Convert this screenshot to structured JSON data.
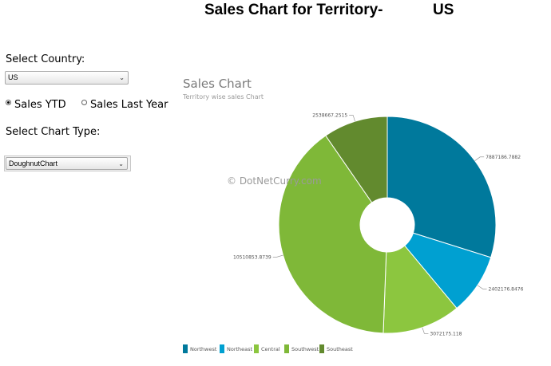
{
  "header": {
    "title_prefix": "Sales Chart for Territory-",
    "title_country": "US"
  },
  "form": {
    "country_label": "Select Country:",
    "country_value": "US",
    "radio_ytd": "Sales YTD",
    "radio_last_year": "Sales Last Year",
    "selected_radio": "ytd",
    "chart_type_label": "Select Chart Type:",
    "chart_type_value": "DoughnutChart"
  },
  "watermark": "© DotNetCurry.com",
  "chart_data": {
    "type": "pie",
    "variant": "doughnut",
    "title": "Sales Chart",
    "subtitle": "Territory wise sales Chart",
    "legend_position": "bottom-left",
    "categories": [
      "Northwest",
      "Northeast",
      "Central",
      "Southwest",
      "Southeast"
    ],
    "values": [
      7887186.7882,
      2402176.8476,
      3072175.118,
      10510853.8739,
      2538667.2515
    ],
    "labels": [
      "7887186.7882",
      "2402176.8476",
      "3072175.118",
      "10510853.8739",
      "2538667.2515"
    ],
    "colors": [
      "#00799c",
      "#00a0d1",
      "#8cc63f",
      "#7fb838",
      "#628a2e"
    ]
  }
}
